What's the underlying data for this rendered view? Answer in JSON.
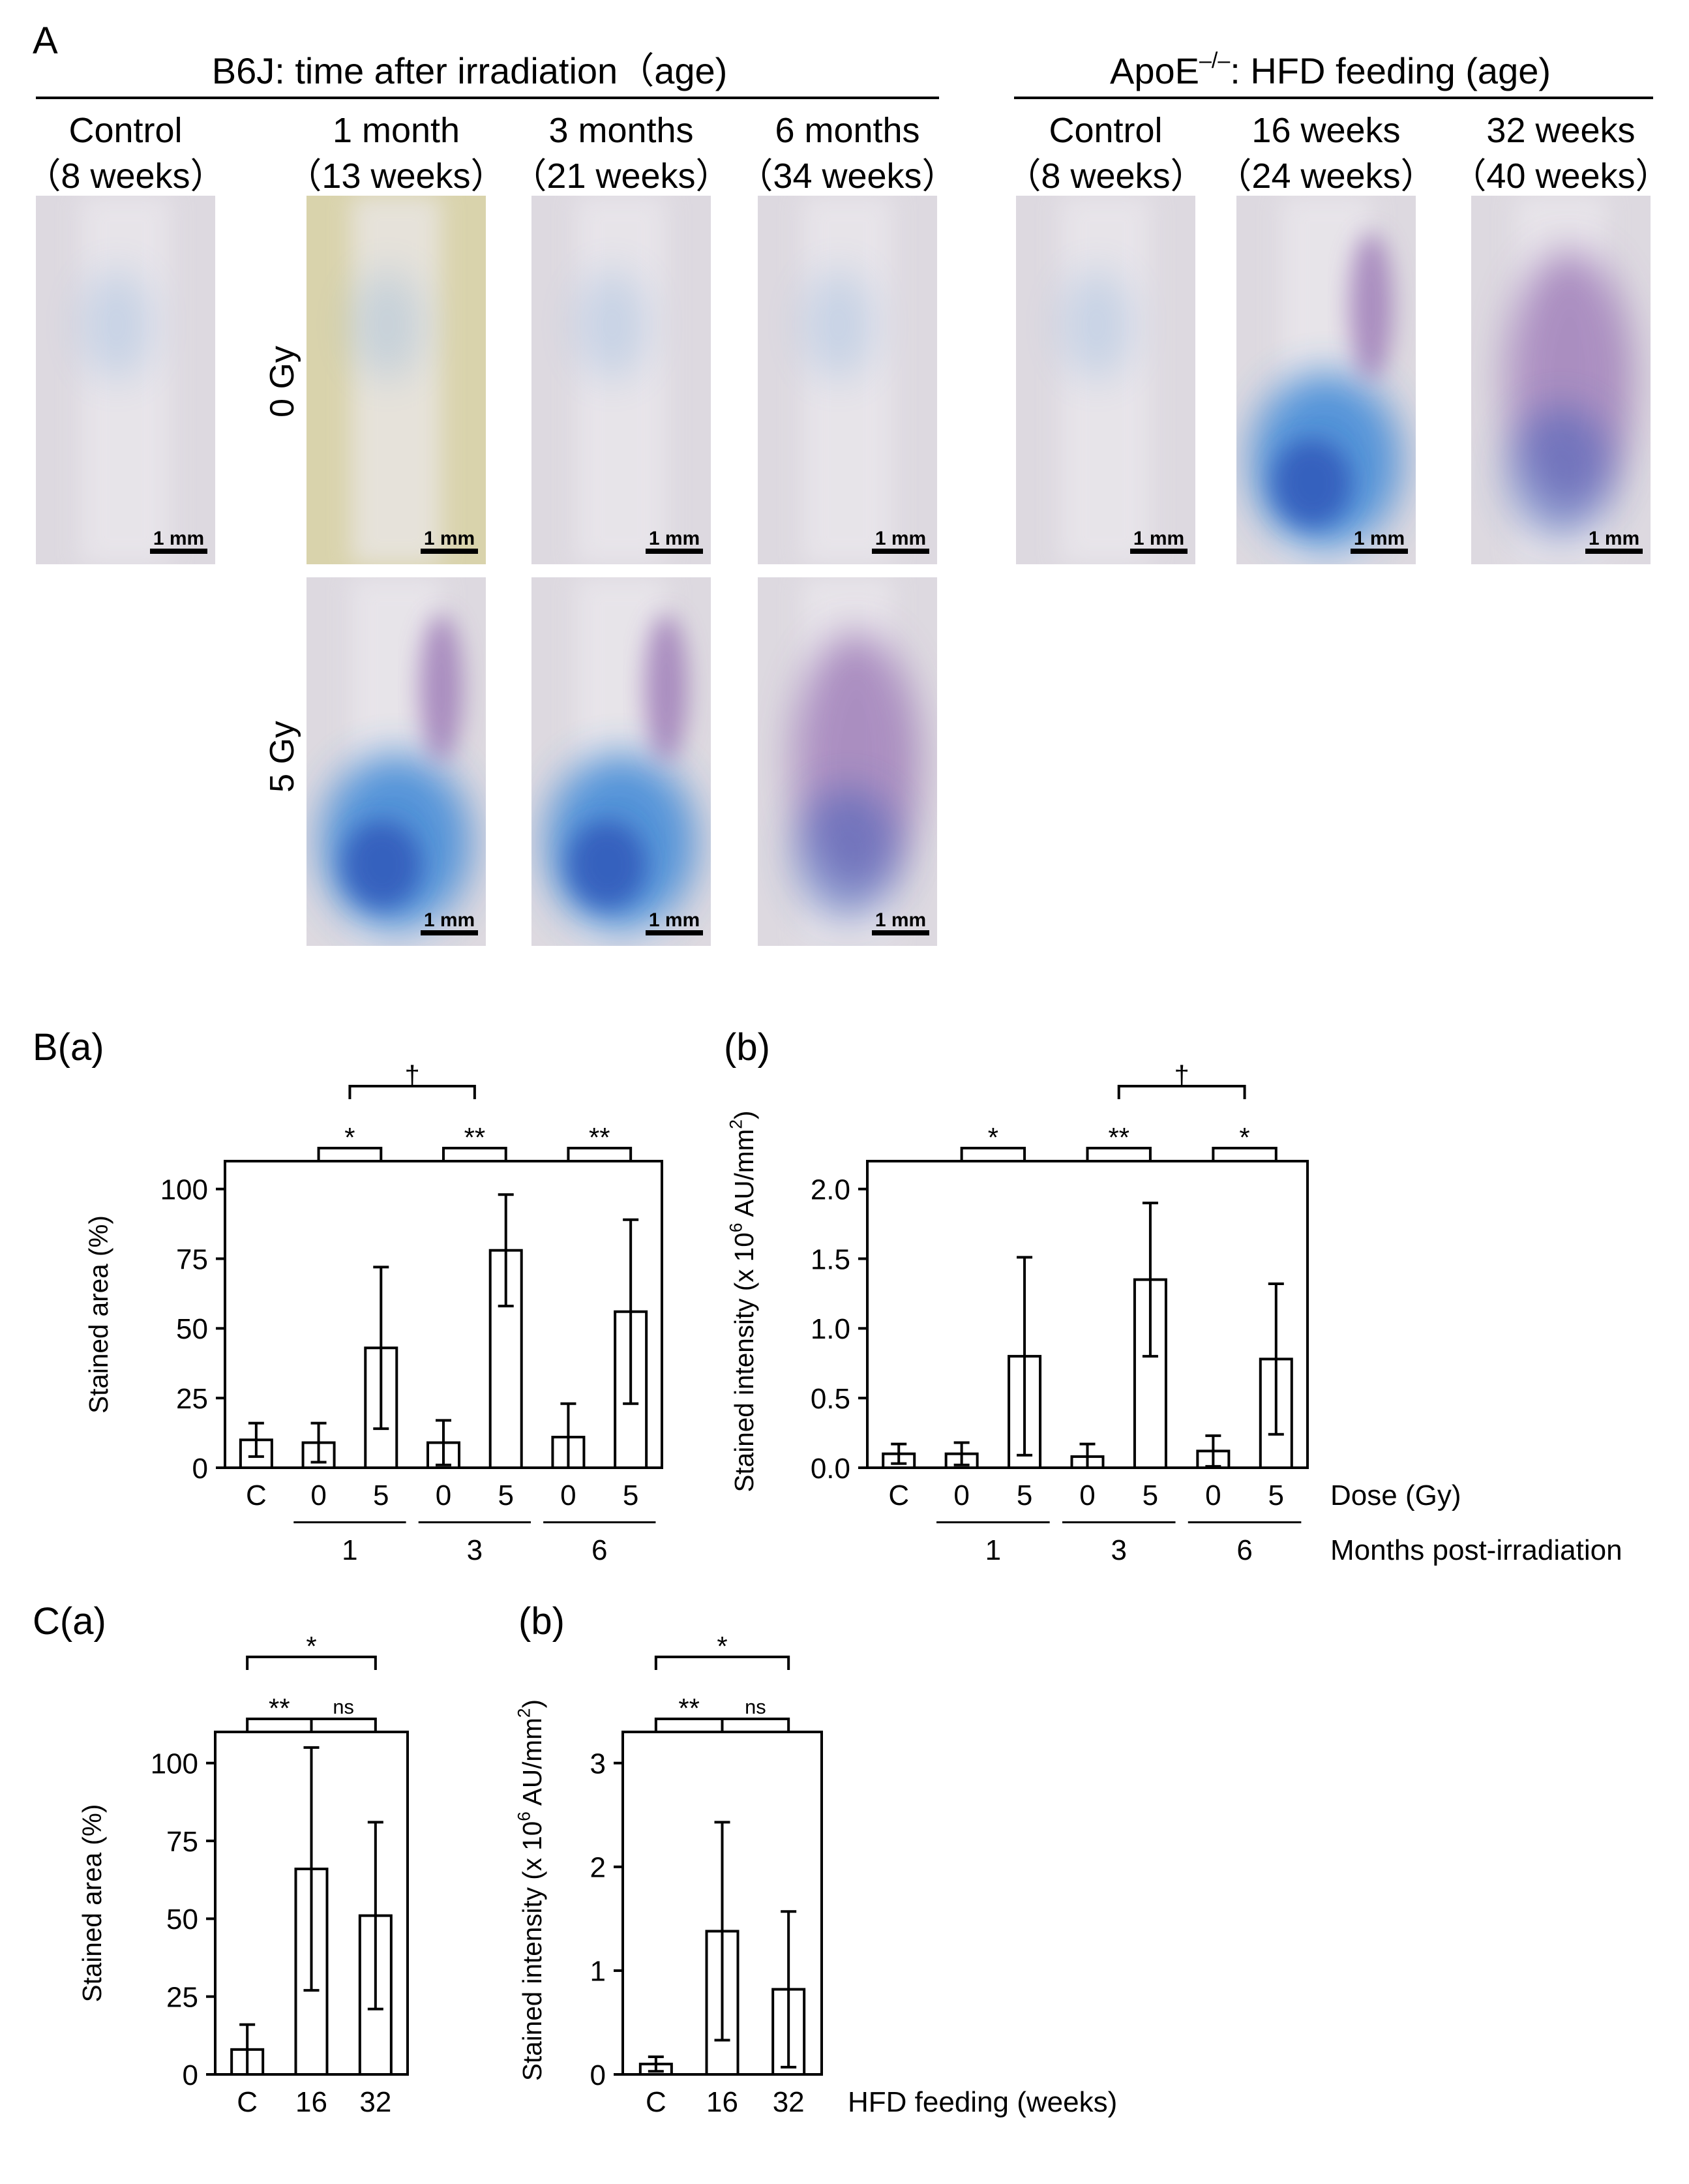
{
  "colors": {
    "line": "#000000",
    "bar_fill": "#ffffff",
    "photo_pale": "#ddd9e0",
    "photo_yellow": "#d9d3ac",
    "stain_blue": "#3a86d6",
    "stain_deep_blue": "#2f55b8",
    "stain_purple": "#7a4aa0"
  },
  "panel_a": {
    "letter": "A",
    "left_group_title": "B6J: time after irradiation（age)",
    "right_group_title_main": "ApoE",
    "right_group_title_sup": "–/–",
    "right_group_title_rest": ": HFD feeding (age)",
    "scale_bar_label": "1 mm",
    "row_label_0gy": "0 Gy",
    "row_label_5gy": "5 Gy",
    "columns": [
      {
        "line1": "Control",
        "line2": "（8 weeks）",
        "photos": [
          {
            "stain": "low"
          }
        ]
      },
      {
        "line1": "1 month",
        "line2": "（13 weeks）",
        "photos": [
          {
            "stain": "yellow"
          },
          {
            "stain": "high"
          }
        ]
      },
      {
        "line1": "3 months",
        "line2": "（21 weeks）",
        "photos": [
          {
            "stain": "low"
          },
          {
            "stain": "high"
          }
        ]
      },
      {
        "line1": "6 months",
        "line2": "（34 weeks）",
        "photos": [
          {
            "stain": "low"
          },
          {
            "stain": "medium"
          }
        ]
      },
      {
        "line1": "Control",
        "line2": "（8 weeks）",
        "photos": [
          {
            "stain": "low"
          }
        ]
      },
      {
        "line1": "16 weeks",
        "line2": "（24 weeks）",
        "photos": [
          {
            "stain": "high"
          }
        ]
      },
      {
        "line1": "32 weeks",
        "line2": "（40 weeks）",
        "photos": [
          {
            "stain": "medium"
          }
        ]
      }
    ]
  },
  "chart_data": [
    {
      "panel": "B(a)",
      "type": "bar",
      "ylabel": "Stained area (%)",
      "ylim": [
        0,
        110
      ],
      "yticks": [
        0,
        25,
        50,
        75,
        100
      ],
      "ytick_labels": [
        "0",
        "25",
        "50",
        "75",
        "100"
      ],
      "categories": [
        "C",
        "0",
        "5",
        "0",
        "5",
        "0",
        "5"
      ],
      "values": [
        10,
        9,
        43,
        9,
        78,
        11,
        56
      ],
      "error": [
        6,
        7,
        29,
        8,
        20,
        12,
        33
      ],
      "groups": [
        {
          "label": "1",
          "from": 1,
          "to": 2
        },
        {
          "label": "3",
          "from": 3,
          "to": 4
        },
        {
          "label": "6",
          "from": 5,
          "to": 6
        }
      ],
      "brackets": [
        {
          "from": 1,
          "to": 2,
          "label": "*",
          "level": 0
        },
        {
          "from": 3,
          "to": 4,
          "label": "**",
          "level": 0
        },
        {
          "from": 5,
          "to": 6,
          "label": "**",
          "level": 0
        },
        {
          "from": 1.5,
          "to": 3.5,
          "label": "†",
          "level": 1
        }
      ]
    },
    {
      "panel": "(b)",
      "type": "bar",
      "ylabel_pre": "Stained intensity (x 10",
      "ylabel_sup": "6",
      "ylabel_mid": " AU/mm",
      "ylabel_sup2": "2",
      "ylabel_post": ")",
      "ylim": [
        0,
        2.2
      ],
      "yticks": [
        0,
        0.5,
        1.0,
        1.5,
        2.0
      ],
      "ytick_labels": [
        "0.0",
        "0.5",
        "1.0",
        "1.5",
        "2.0"
      ],
      "categories": [
        "C",
        "0",
        "5",
        "0",
        "5",
        "0",
        "5"
      ],
      "values": [
        0.1,
        0.1,
        0.8,
        0.08,
        1.35,
        0.12,
        0.78
      ],
      "error": [
        0.07,
        0.08,
        0.71,
        0.09,
        0.55,
        0.11,
        0.54
      ],
      "groups": [
        {
          "label": "1",
          "from": 1,
          "to": 2
        },
        {
          "label": "3",
          "from": 3,
          "to": 4
        },
        {
          "label": "6",
          "from": 5,
          "to": 6
        }
      ],
      "brackets": [
        {
          "from": 1,
          "to": 2,
          "label": "*",
          "level": 0
        },
        {
          "from": 3,
          "to": 4,
          "label": "**",
          "level": 0
        },
        {
          "from": 5,
          "to": 6,
          "label": "*",
          "level": 0
        },
        {
          "from": 3.5,
          "to": 5.5,
          "label": "†",
          "level": 1
        }
      ],
      "xaxis_title": "Dose (Gy)",
      "group_title": "Months post-irradiation"
    },
    {
      "panel": "C(a)",
      "type": "bar",
      "ylabel": "Stained area (%)",
      "ylim": [
        0,
        110
      ],
      "yticks": [
        0,
        25,
        50,
        75,
        100
      ],
      "ytick_labels": [
        "0",
        "25",
        "50",
        "75",
        "100"
      ],
      "categories": [
        "C",
        "16",
        "32"
      ],
      "values": [
        8,
        66,
        51
      ],
      "error": [
        8,
        39,
        30
      ],
      "brackets": [
        {
          "from": 0,
          "to": 1,
          "label": "**",
          "level": 0
        },
        {
          "from": 1,
          "to": 2,
          "label": "ns",
          "level": 0
        },
        {
          "from": 0,
          "to": 2,
          "label": "*",
          "level": 1
        }
      ]
    },
    {
      "panel": "(b)",
      "type": "bar",
      "ylabel_pre": "Stained intensity (x 10",
      "ylabel_sup": "6",
      "ylabel_mid": " AU/mm",
      "ylabel_sup2": "2",
      "ylabel_post": ")",
      "ylim": [
        0,
        3.3
      ],
      "yticks": [
        0,
        1,
        2,
        3
      ],
      "ytick_labels": [
        "0",
        "1",
        "2",
        "3"
      ],
      "categories": [
        "C",
        "16",
        "32"
      ],
      "values": [
        0.1,
        1.38,
        0.82
      ],
      "error": [
        0.07,
        1.05,
        0.75
      ],
      "brackets": [
        {
          "from": 0,
          "to": 1,
          "label": "**",
          "level": 0
        },
        {
          "from": 1,
          "to": 2,
          "label": "ns",
          "level": 0
        },
        {
          "from": 0,
          "to": 2,
          "label": "*",
          "level": 1
        }
      ],
      "xaxis_title": "HFD feeding (weeks)"
    }
  ]
}
